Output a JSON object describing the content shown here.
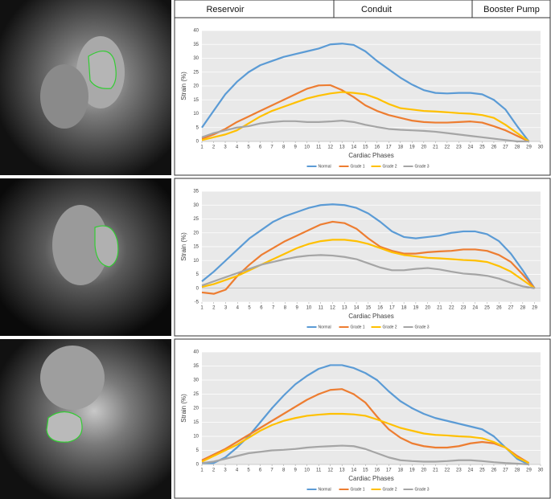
{
  "header": {
    "columns": [
      "Reservoir",
      "Conduit",
      "Booster Pump"
    ]
  },
  "chart_data": [
    {
      "type": "line",
      "x_label": "Cardiac Phases",
      "y_label": "Strain (%)",
      "x": [
        1,
        2,
        3,
        4,
        5,
        6,
        7,
        8,
        9,
        10,
        11,
        12,
        13,
        14,
        15,
        16,
        17,
        18,
        19,
        20,
        21,
        22,
        23,
        24,
        25,
        26,
        27,
        28,
        29
      ],
      "xlim": [
        1,
        30
      ],
      "xticks": [
        1,
        2,
        3,
        4,
        5,
        6,
        7,
        8,
        9,
        10,
        11,
        12,
        13,
        14,
        15,
        16,
        17,
        18,
        19,
        20,
        21,
        22,
        23,
        24,
        25,
        26,
        27,
        28,
        29,
        30
      ],
      "ylim": [
        0,
        40
      ],
      "yticks": [
        0,
        5,
        10,
        15,
        20,
        25,
        30,
        35,
        40
      ],
      "grid": true,
      "legend": "bottom",
      "series": [
        {
          "name": "Normal",
          "color": "#5b9bd5",
          "values": [
            5,
            11,
            17,
            21.5,
            25,
            27.5,
            29,
            30.5,
            31.5,
            32.5,
            33.5,
            35,
            35.3,
            34.8,
            32.5,
            29,
            26,
            23,
            20.5,
            18.5,
            17.5,
            17.3,
            17.5,
            17.5,
            17,
            15,
            11.5,
            5.5,
            0
          ]
        },
        {
          "name": "Grade 1",
          "color": "#ed7d31",
          "values": [
            1,
            2.5,
            4.5,
            7,
            9,
            11,
            13,
            15,
            17,
            19,
            20.2,
            20.3,
            18.5,
            16,
            13,
            11,
            9.5,
            8.5,
            7.5,
            7,
            6.8,
            6.8,
            7,
            7.2,
            6.8,
            5.5,
            4,
            2,
            0
          ]
        },
        {
          "name": "Grade 2",
          "color": "#ffc000",
          "values": [
            0.5,
            1.5,
            2.5,
            4,
            6.5,
            9,
            11,
            12.5,
            14,
            15.5,
            16.5,
            17.3,
            17.8,
            17.5,
            17,
            15.5,
            13.5,
            12,
            11.5,
            11,
            10.8,
            10.5,
            10.2,
            10,
            9.5,
            8.5,
            6,
            3,
            0
          ]
        },
        {
          "name": "Grade 3",
          "color": "#a5a5a5",
          "values": [
            1.5,
            3,
            4,
            5,
            5.5,
            6.5,
            7,
            7.3,
            7.3,
            7,
            7,
            7.2,
            7.5,
            7,
            6,
            5.2,
            4.5,
            4.2,
            4,
            3.8,
            3.5,
            3,
            2.5,
            2,
            1.5,
            1,
            0.5,
            0,
            0
          ]
        }
      ]
    },
    {
      "type": "line",
      "x_label": "Cardiac Phases",
      "y_label": "Strain (%)",
      "x": [
        1,
        2,
        3,
        4,
        5,
        6,
        7,
        8,
        9,
        10,
        11,
        12,
        13,
        14,
        15,
        16,
        17,
        18,
        19,
        20,
        21,
        22,
        23,
        24,
        25,
        26,
        27,
        28,
        29
      ],
      "xlim": [
        1,
        29.5
      ],
      "xticks": [
        1,
        2,
        3,
        4,
        5,
        6,
        7,
        8,
        9,
        10,
        11,
        12,
        13,
        14,
        15,
        16,
        17,
        18,
        19,
        20,
        21,
        22,
        23,
        24,
        25,
        26,
        27,
        28,
        29
      ],
      "ylim": [
        -5,
        35
      ],
      "yticks": [
        -5,
        0,
        5,
        10,
        15,
        20,
        25,
        30,
        35
      ],
      "grid": true,
      "legend": "bottom",
      "series": [
        {
          "name": "Normal",
          "color": "#5b9bd5",
          "values": [
            2.5,
            6,
            10,
            14,
            18,
            21,
            24,
            26,
            27.5,
            29,
            30,
            30.3,
            30,
            29,
            27,
            24,
            20.5,
            18.5,
            18,
            18.5,
            19,
            20,
            20.5,
            20.5,
            19.5,
            17,
            12.5,
            6.5,
            0
          ]
        },
        {
          "name": "Grade 1",
          "color": "#ed7d31",
          "values": [
            -1.5,
            -2,
            -0.5,
            4.5,
            8.5,
            12,
            14.5,
            17,
            19,
            21,
            23,
            24,
            23.5,
            21.5,
            18,
            15,
            13.5,
            12.5,
            12.5,
            13,
            13.3,
            13.5,
            14,
            14,
            13.5,
            12,
            9.5,
            5,
            0
          ]
        },
        {
          "name": "Grade 2",
          "color": "#ffc000",
          "values": [
            0.5,
            1.5,
            3,
            4.5,
            6.5,
            8.5,
            10.5,
            12.5,
            14.5,
            16,
            17,
            17.5,
            17.5,
            17,
            16,
            14.5,
            13,
            12,
            11.5,
            11,
            10.8,
            10.5,
            10.2,
            10,
            9.5,
            8,
            6,
            3,
            0
          ]
        },
        {
          "name": "Grade 3",
          "color": "#a5a5a5",
          "values": [
            1,
            2.5,
            4,
            5.5,
            7,
            8.5,
            9.5,
            10.5,
            11.3,
            11.8,
            12,
            11.8,
            11.3,
            10.5,
            9,
            7.5,
            6.5,
            6.5,
            7,
            7.3,
            6.8,
            6,
            5.3,
            5,
            4.5,
            3.5,
            2,
            0.7,
            0
          ]
        }
      ]
    },
    {
      "type": "line",
      "x_label": "Cardiac Phases",
      "y_label": "Strain (%)",
      "x": [
        1,
        2,
        3,
        4,
        5,
        6,
        7,
        8,
        9,
        10,
        11,
        12,
        13,
        14,
        15,
        16,
        17,
        18,
        19,
        20,
        21,
        22,
        23,
        24,
        25,
        26,
        27,
        28,
        29
      ],
      "xlim": [
        1,
        30
      ],
      "xticks": [
        1,
        2,
        3,
        4,
        5,
        6,
        7,
        8,
        9,
        10,
        11,
        12,
        13,
        14,
        15,
        16,
        17,
        18,
        19,
        20,
        21,
        22,
        23,
        24,
        25,
        26,
        27,
        28,
        29,
        30
      ],
      "ylim": [
        0,
        40
      ],
      "yticks": [
        0,
        5,
        10,
        15,
        20,
        25,
        30,
        35,
        40
      ],
      "grid": true,
      "legend": "bottom",
      "series": [
        {
          "name": "Normal",
          "color": "#5b9bd5",
          "values": [
            0.5,
            0.5,
            2.5,
            6,
            10,
            15,
            20,
            24.5,
            28.5,
            31.5,
            34,
            35.3,
            35.3,
            34.3,
            32.5,
            30,
            26,
            22.5,
            20,
            18,
            16.5,
            15.5,
            14.5,
            13.5,
            12.5,
            10,
            6,
            2,
            0
          ]
        },
        {
          "name": "Grade 1",
          "color": "#ed7d31",
          "values": [
            1.5,
            3.5,
            5.5,
            8,
            10.5,
            13,
            15.5,
            18,
            20.5,
            23,
            25,
            26.5,
            26.8,
            25,
            22,
            17,
            12.5,
            9.5,
            7.5,
            6.5,
            6,
            6,
            6.5,
            7.5,
            8,
            7.5,
            6,
            3,
            0.5
          ]
        },
        {
          "name": "Grade 2",
          "color": "#ffc000",
          "values": [
            1,
            3,
            5,
            7,
            9.5,
            12,
            14,
            15.5,
            16.5,
            17.3,
            17.7,
            18,
            18,
            17.8,
            17.3,
            16,
            14.5,
            13,
            12,
            11,
            10.5,
            10.3,
            10,
            9.8,
            9.3,
            8,
            6,
            2.5,
            0.5
          ]
        },
        {
          "name": "Grade 3",
          "color": "#a5a5a5",
          "values": [
            0.5,
            1,
            2,
            3,
            4,
            4.5,
            5,
            5.2,
            5.5,
            6,
            6.3,
            6.5,
            6.7,
            6.5,
            5.5,
            4,
            2.5,
            1.5,
            1.2,
            1,
            1,
            1.2,
            1.5,
            1.5,
            1.2,
            0.8,
            0.5,
            0.3,
            0
          ]
        }
      ]
    }
  ]
}
